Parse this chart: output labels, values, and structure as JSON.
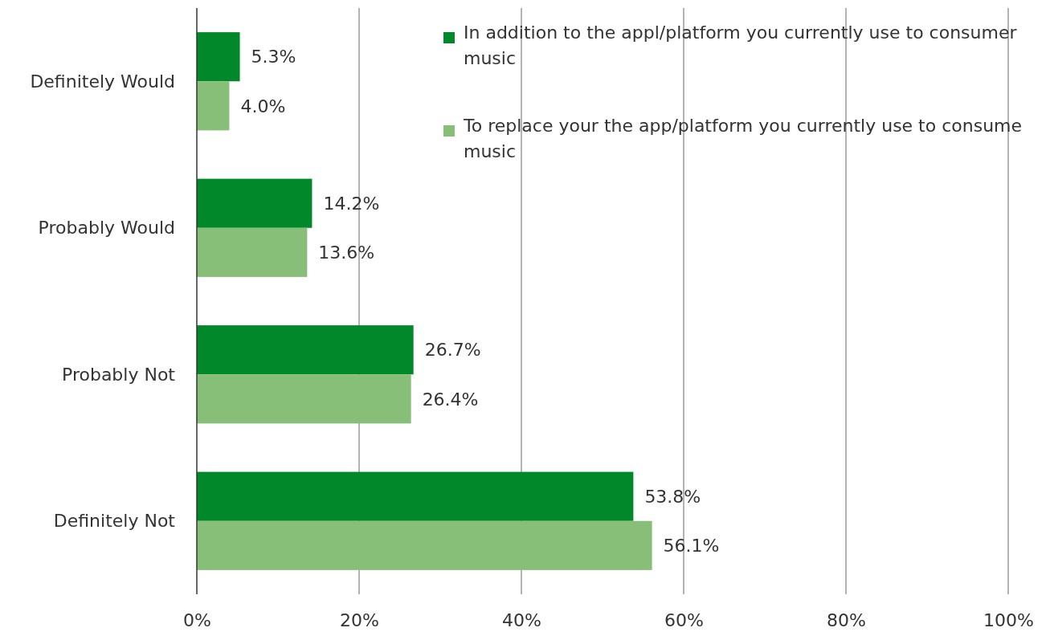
{
  "chart_data": {
    "type": "bar",
    "orientation": "horizontal",
    "categories": [
      "Definitely Would",
      "Probably Would",
      "Probably Not",
      "Definitely Not"
    ],
    "series": [
      {
        "name": "In addition to the appl/platform you currently use to consumer music",
        "color": "#00882b",
        "values": [
          5.3,
          14.2,
          26.7,
          53.8
        ],
        "value_labels": [
          "5.3%",
          "14.2%",
          "26.7%",
          "53.8%"
        ]
      },
      {
        "name": "To replace your the app/platform you currently use to consume music",
        "color": "#88bf78",
        "values": [
          4.0,
          13.6,
          26.4,
          56.1
        ],
        "value_labels": [
          "4.0%",
          "13.6%",
          "26.4%",
          "56.1%"
        ]
      }
    ],
    "xlim": [
      0,
      100
    ],
    "xticks": [
      {
        "value": 0,
        "label": "0%"
      },
      {
        "value": 20,
        "label": "20%"
      },
      {
        "value": 40,
        "label": "40%"
      },
      {
        "value": 60,
        "label": "60%"
      },
      {
        "value": 80,
        "label": "80%"
      },
      {
        "value": 100,
        "label": "100%"
      }
    ],
    "grid": "x",
    "legend": "top right"
  }
}
